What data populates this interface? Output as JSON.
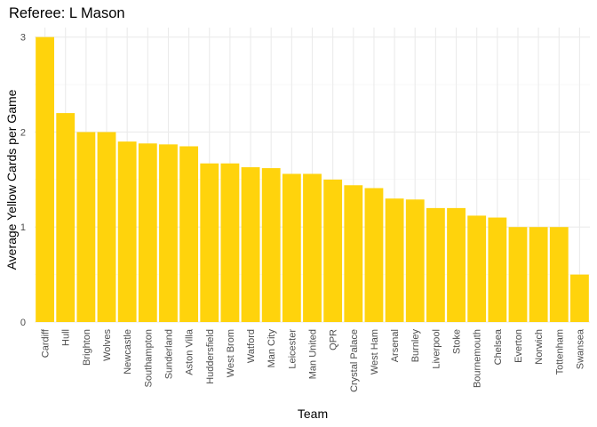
{
  "chart_data": {
    "type": "bar",
    "title": "Referee: L Mason",
    "xlabel": "Team",
    "ylabel": "Average Yellow Cards per Game",
    "categories": [
      "Cardiff",
      "Hull",
      "Brighton",
      "Wolves",
      "Newcastle",
      "Southampton",
      "Sunderland",
      "Aston Villa",
      "Huddersfield",
      "West Brom",
      "Watford",
      "Man City",
      "Leicester",
      "Man United",
      "QPR",
      "Crystal Palace",
      "West Ham",
      "Arsenal",
      "Burnley",
      "Liverpool",
      "Stoke",
      "Bournemouth",
      "Chelsea",
      "Everton",
      "Norwich",
      "Tottenham",
      "Swansea"
    ],
    "values": [
      3.0,
      2.2,
      2.0,
      2.0,
      1.9,
      1.88,
      1.87,
      1.85,
      1.67,
      1.67,
      1.63,
      1.62,
      1.56,
      1.56,
      1.5,
      1.44,
      1.41,
      1.3,
      1.29,
      1.2,
      1.2,
      1.12,
      1.1,
      1.0,
      1.0,
      1.0,
      0.5
    ],
    "yticks": [
      "0",
      "1",
      "2",
      "3"
    ],
    "ylim": [
      0,
      3.1
    ],
    "grid": true,
    "legend": "none",
    "bar_color": "#FFD30C"
  }
}
